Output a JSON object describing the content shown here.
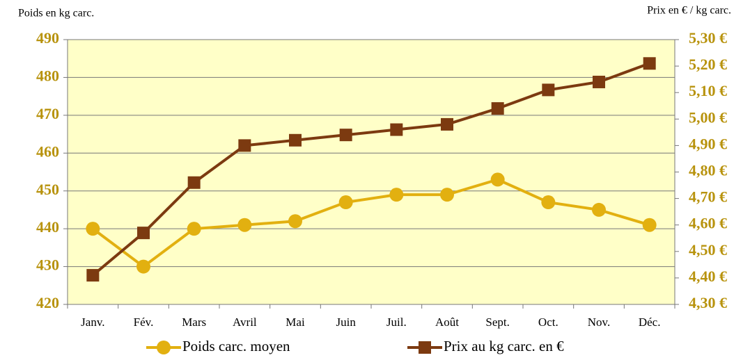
{
  "chart_data": {
    "type": "line",
    "y_label": "Poids en kg carc.",
    "y2_label": "Prix en € / kg carc.",
    "categories": [
      "Janv.",
      "Fév.",
      "Mars",
      "Avril",
      "Mai",
      "Juin",
      "Juil.",
      "Août",
      "Sept.",
      "Oct.",
      "Nov.",
      "Déc."
    ],
    "series": [
      {
        "name": "Poids carc. moyen",
        "color": "#e2b010",
        "marker": "circle",
        "values": [
          440,
          430,
          440,
          441,
          442,
          447,
          449,
          449,
          453,
          447,
          445,
          441
        ]
      },
      {
        "name": "Prix au kg carc. en €",
        "color": "#7c3a10",
        "marker": "square",
        "axis": "y2",
        "values": [
          4.41,
          4.57,
          4.76,
          4.9,
          4.92,
          4.94,
          4.96,
          4.98,
          5.04,
          5.11,
          5.14,
          5.21
        ]
      }
    ],
    "ylim": [
      420,
      490
    ],
    "yticks": [
      420,
      430,
      440,
      450,
      460,
      470,
      480,
      490
    ],
    "y2lim": [
      4.3,
      5.3
    ],
    "y2ticks": [
      {
        "value": 4.3,
        "label": "4,30 €"
      },
      {
        "value": 4.4,
        "label": "4,40 €"
      },
      {
        "value": 4.5,
        "label": "4,50 €"
      },
      {
        "value": 4.6,
        "label": "4,60 €"
      },
      {
        "value": 4.7,
        "label": "4,70 €"
      },
      {
        "value": 4.8,
        "label": "4,80 €"
      },
      {
        "value": 4.9,
        "label": "4,90 €"
      },
      {
        "value": 5.0,
        "label": "5,00 €"
      },
      {
        "value": 5.1,
        "label": "5,10 €"
      },
      {
        "value": 5.2,
        "label": "5,20 €"
      },
      {
        "value": 5.3,
        "label": "5,30 €"
      }
    ],
    "grid": true,
    "plot_background": "#ffffc8",
    "legend": "bottom"
  }
}
